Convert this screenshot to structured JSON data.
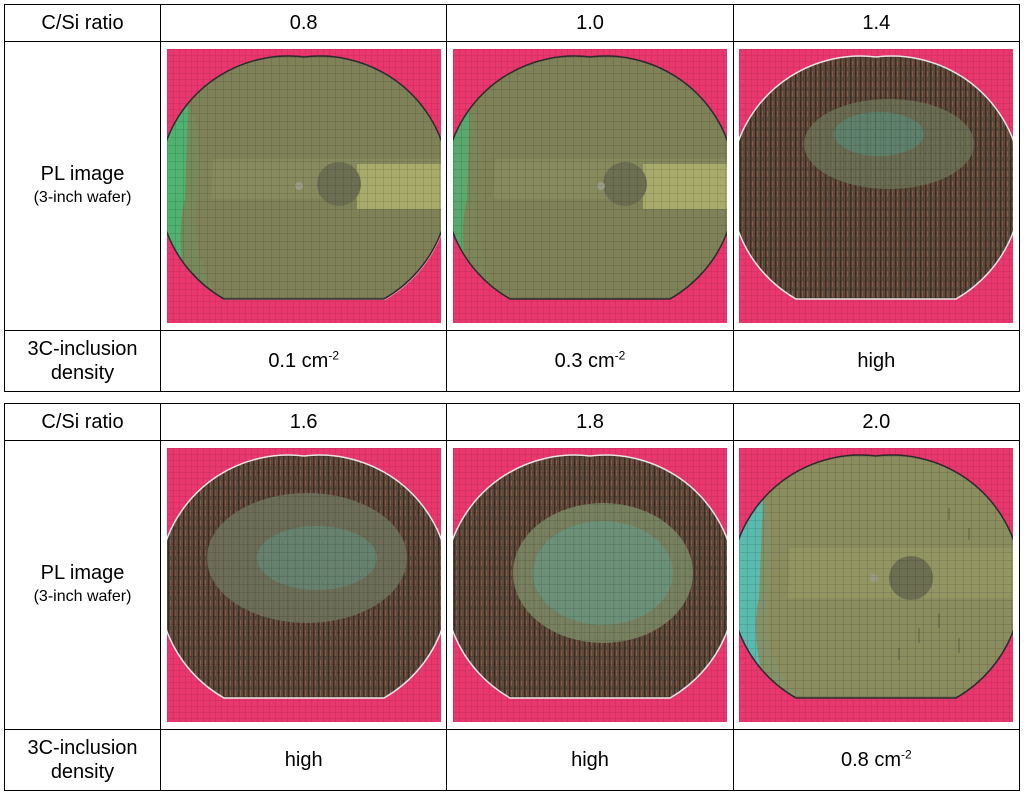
{
  "tables": [
    {
      "header_label": "C/Si ratio",
      "ratios": [
        "0.8",
        "1.0",
        "1.4"
      ],
      "image_label": "PL image",
      "image_sublabel": "(3-inch wafer)",
      "density_label_1": "3C-inclusion",
      "density_label_2": "density",
      "densities": [
        {
          "value": "0.1 cm",
          "exp": "-2"
        },
        {
          "value": "0.3 cm",
          "exp": "-2"
        },
        {
          "value": "high",
          "exp": ""
        }
      ]
    },
    {
      "header_label": "C/Si ratio",
      "ratios": [
        "1.6",
        "1.8",
        "2.0"
      ],
      "image_label": "PL image",
      "image_sublabel": "(3-inch wafer)",
      "density_label_1": "3C-inclusion",
      "density_label_2": "density",
      "densities": [
        {
          "value": "high",
          "exp": ""
        },
        {
          "value": "high",
          "exp": ""
        },
        {
          "value": "0.8 cm",
          "exp": "-2"
        }
      ]
    }
  ],
  "colors": {
    "background_pink": "#e8386e",
    "wafer_olive": "#7f8258",
    "wafer_dark": "#6b5a44",
    "edge_green": "#3fc17a",
    "edge_cyan": "#4cc5c2",
    "flat_zone": "#a9ab6a"
  }
}
